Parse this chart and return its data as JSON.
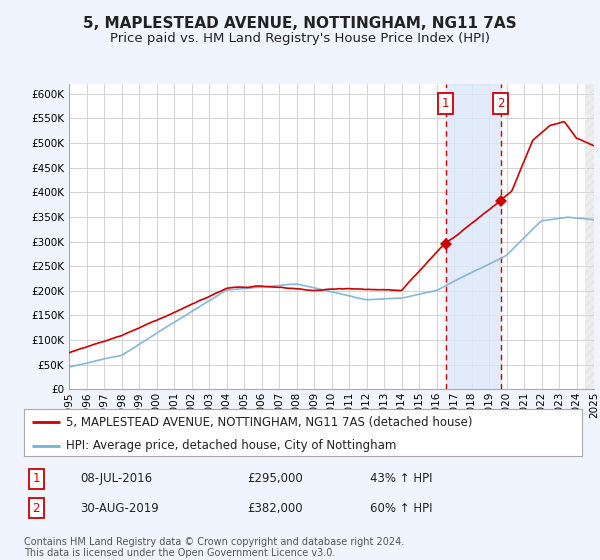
{
  "title": "5, MAPLESTEAD AVENUE, NOTTINGHAM, NG11 7AS",
  "subtitle": "Price paid vs. HM Land Registry's House Price Index (HPI)",
  "hpi_label": "HPI: Average price, detached house, City of Nottingham",
  "property_label": "5, MAPLESTEAD AVENUE, NOTTINGHAM, NG11 7AS (detached house)",
  "x_start_year": 1995,
  "x_end_year": 2025,
  "ylim": [
    0,
    620000
  ],
  "yticks": [
    0,
    50000,
    100000,
    150000,
    200000,
    250000,
    300000,
    350000,
    400000,
    450000,
    500000,
    550000,
    600000
  ],
  "sale1_date": 2016.52,
  "sale1_price": 295000,
  "sale1_label": "08-JUL-2016",
  "sale1_pct": "43% ↑ HPI",
  "sale2_date": 2019.66,
  "sale2_price": 382000,
  "sale2_label": "30-AUG-2019",
  "sale2_pct": "60% ↑ HPI",
  "background_color": "#f0f4ff",
  "plot_bg_color": "#ffffff",
  "grid_color": "#cccccc",
  "hpi_color": "#7bafd4",
  "property_color": "#cc0000",
  "vline_color": "#cc0000",
  "highlight_color": "#dde8f8",
  "sale_marker_color": "#cc0000",
  "legend_box_color": "#cc0000",
  "footer_text": "Contains HM Land Registry data © Crown copyright and database right 2024.\nThis data is licensed under the Open Government Licence v3.0.",
  "title_fontsize": 11,
  "subtitle_fontsize": 9.5,
  "tick_fontsize": 7.5,
  "legend_fontsize": 8.5,
  "annotation_fontsize": 8.5
}
